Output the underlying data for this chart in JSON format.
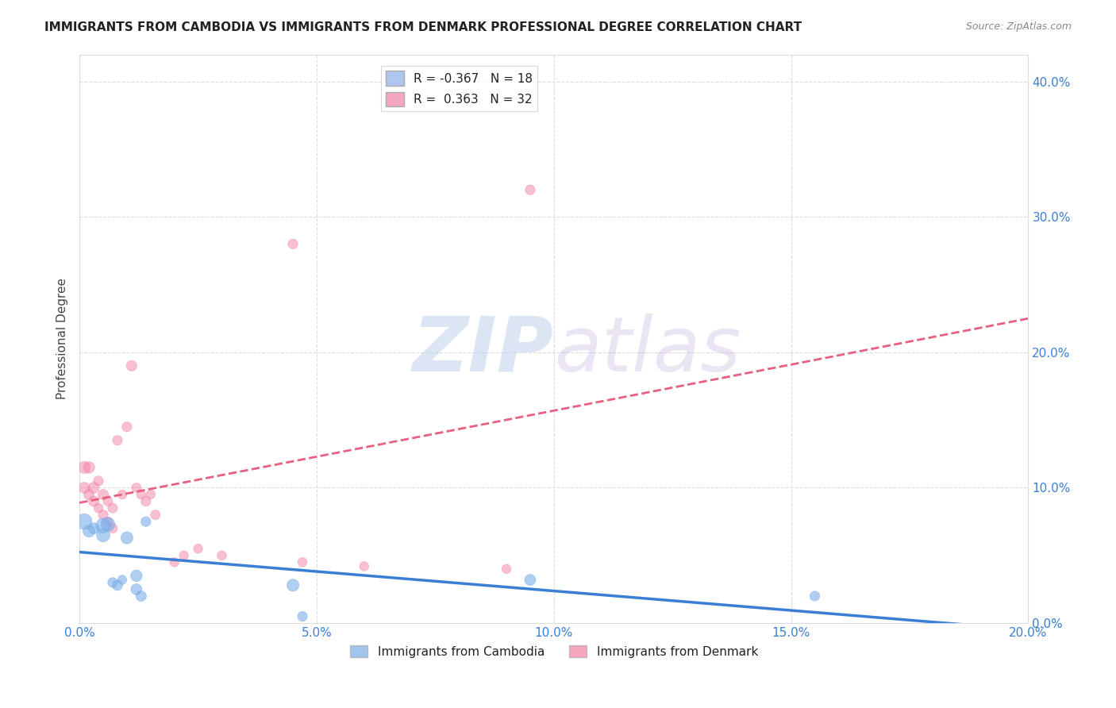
{
  "title": "IMMIGRANTS FROM CAMBODIA VS IMMIGRANTS FROM DENMARK PROFESSIONAL DEGREE CORRELATION CHART",
  "source": "Source: ZipAtlas.com",
  "ylabel": "Professional Degree",
  "xlim": [
    0.0,
    0.2
  ],
  "ylim": [
    0.0,
    0.42
  ],
  "x_ticks": [
    0.0,
    0.05,
    0.1,
    0.15,
    0.2
  ],
  "y_ticks_right": [
    0.0,
    0.1,
    0.2,
    0.3,
    0.4
  ],
  "x_tick_labels": [
    "0.0%",
    "5.0%",
    "10.0%",
    "15.0%",
    "20.0%"
  ],
  "y_tick_labels_right": [
    "0.0%",
    "10.0%",
    "20.0%",
    "30.0%",
    "40.0%"
  ],
  "legend_entries": [
    {
      "label": "R = -0.367   N = 18",
      "color": "#aec6f0"
    },
    {
      "label": "R =  0.363   N = 32",
      "color": "#f4a8c0"
    }
  ],
  "background_color": "#ffffff",
  "grid_color": "#dddddd",
  "cambodia_color": "#7aaee8",
  "denmark_color": "#f080a0",
  "cambodia_line_color": "#3a7fd5",
  "denmark_line_color": "#e86080",
  "cambodia_scatter": {
    "x": [
      0.001,
      0.002,
      0.003,
      0.005,
      0.005,
      0.006,
      0.007,
      0.008,
      0.009,
      0.01,
      0.012,
      0.012,
      0.013,
      0.014,
      0.045,
      0.047,
      0.095,
      0.155
    ],
    "y": [
      0.075,
      0.068,
      0.07,
      0.072,
      0.065,
      0.073,
      0.03,
      0.028,
      0.032,
      0.063,
      0.025,
      0.035,
      0.02,
      0.075,
      0.028,
      0.005,
      0.032,
      0.02
    ],
    "size": [
      200,
      120,
      100,
      180,
      150,
      160,
      80,
      90,
      70,
      120,
      100,
      110,
      90,
      80,
      120,
      80,
      100,
      80
    ]
  },
  "denmark_scatter": {
    "x": [
      0.001,
      0.001,
      0.002,
      0.002,
      0.003,
      0.003,
      0.004,
      0.004,
      0.005,
      0.005,
      0.006,
      0.006,
      0.007,
      0.007,
      0.008,
      0.009,
      0.01,
      0.011,
      0.012,
      0.013,
      0.014,
      0.015,
      0.016,
      0.02,
      0.022,
      0.025,
      0.03,
      0.045,
      0.047,
      0.06,
      0.09,
      0.095
    ],
    "y": [
      0.115,
      0.1,
      0.115,
      0.095,
      0.1,
      0.09,
      0.105,
      0.085,
      0.095,
      0.08,
      0.09,
      0.075,
      0.085,
      0.07,
      0.135,
      0.095,
      0.145,
      0.19,
      0.1,
      0.095,
      0.09,
      0.095,
      0.08,
      0.045,
      0.05,
      0.055,
      0.05,
      0.28,
      0.045,
      0.042,
      0.04,
      0.32
    ],
    "size": [
      120,
      100,
      110,
      90,
      100,
      90,
      80,
      70,
      90,
      80,
      75,
      70,
      80,
      75,
      80,
      70,
      80,
      90,
      75,
      70,
      80,
      70,
      75,
      70,
      70,
      70,
      70,
      80,
      70,
      70,
      70,
      80
    ]
  }
}
